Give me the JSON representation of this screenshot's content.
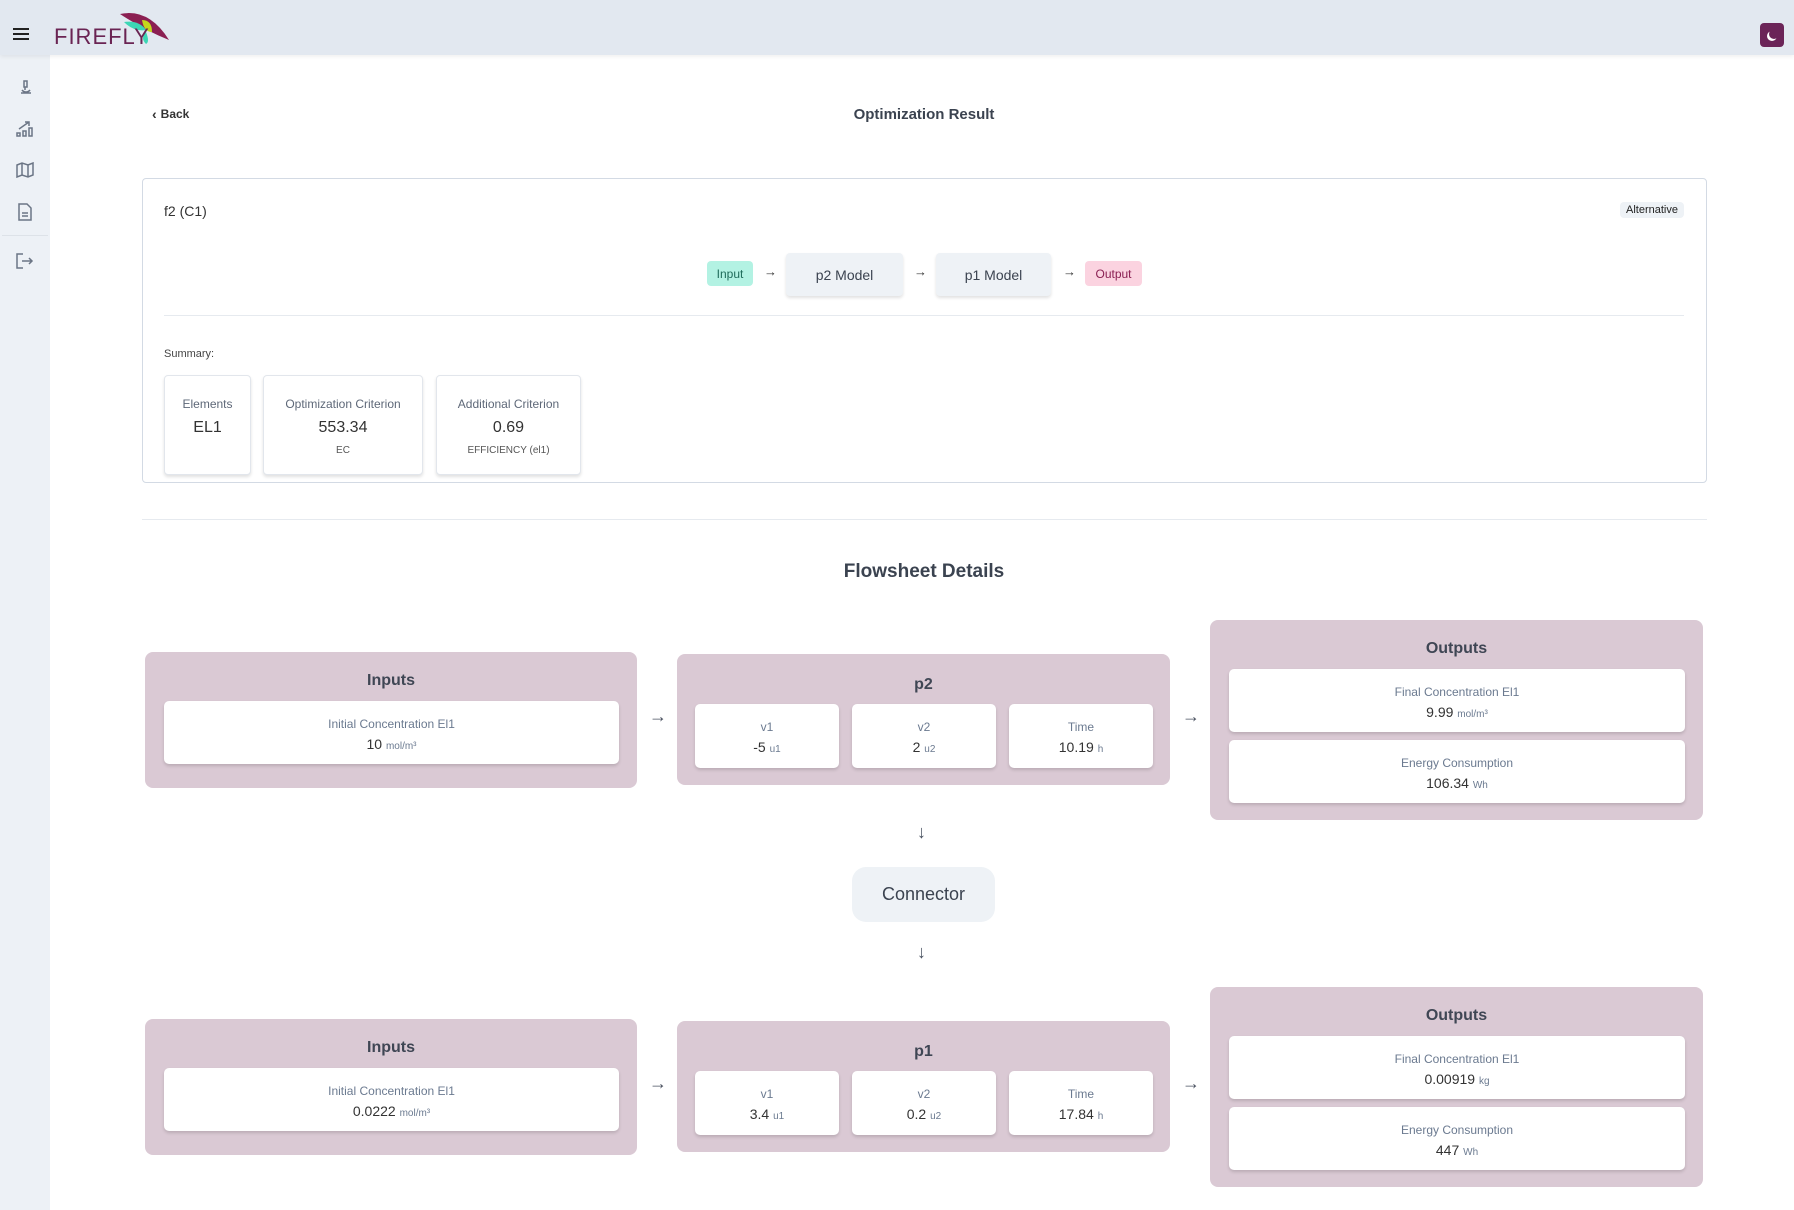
{
  "header": {
    "brand": "FIREFLY",
    "menu_icon": "hamburger-icon",
    "theme_icon": "moon-icon",
    "accent": "#6b2458"
  },
  "sidebar": {
    "items": [
      {
        "icon": "microscope-icon"
      },
      {
        "icon": "chart-growth-icon"
      },
      {
        "icon": "map-icon"
      },
      {
        "icon": "document-icon"
      },
      {
        "icon": "logout-icon"
      }
    ]
  },
  "page": {
    "back_label": "Back",
    "title": "Optimization Result"
  },
  "result": {
    "name": "f2 (C1)",
    "badge": "Alternative",
    "pipeline": {
      "input": "Input",
      "steps": [
        "p2 Model",
        "p1 Model"
      ],
      "output": "Output"
    },
    "summary_label": "Summary:",
    "summary": [
      {
        "label": "Elements",
        "value": "EL1",
        "sub": ""
      },
      {
        "label": "Optimization Criterion",
        "value": "553.34",
        "sub": "EC"
      },
      {
        "label": "Additional Criterion",
        "value": "0.69",
        "sub": "EFFICIENCY (el1)"
      }
    ]
  },
  "flowsheet": {
    "title": "Flowsheet Details",
    "connector": "Connector",
    "stages": [
      {
        "inputs_title": "Inputs",
        "inputs": [
          {
            "label": "Initial Concentration El1",
            "value": "10",
            "unit": "mol/m³"
          }
        ],
        "process": "p2",
        "params": [
          {
            "label": "v1",
            "value": "-5",
            "unit": "u1"
          },
          {
            "label": "v2",
            "value": "2",
            "unit": "u2"
          },
          {
            "label": "Time",
            "value": "10.19",
            "unit": "h"
          }
        ],
        "outputs_title": "Outputs",
        "outputs": [
          {
            "label": "Final Concentration El1",
            "value": "9.99",
            "unit": "mol/m³"
          },
          {
            "label": "Energy Consumption",
            "value": "106.34",
            "unit": "Wh"
          }
        ]
      },
      {
        "inputs_title": "Inputs",
        "inputs": [
          {
            "label": "Initial Concentration El1",
            "value": "0.0222",
            "unit": "mol/m³"
          }
        ],
        "process": "p1",
        "params": [
          {
            "label": "v1",
            "value": "3.4",
            "unit": "u1"
          },
          {
            "label": "v2",
            "value": "0.2",
            "unit": "u2"
          },
          {
            "label": "Time",
            "value": "17.84",
            "unit": "h"
          }
        ],
        "outputs_title": "Outputs",
        "outputs": [
          {
            "label": "Final Concentration El1",
            "value": "0.00919",
            "unit": "kg"
          },
          {
            "label": "Energy Consumption",
            "value": "447",
            "unit": "Wh"
          }
        ]
      }
    ]
  }
}
